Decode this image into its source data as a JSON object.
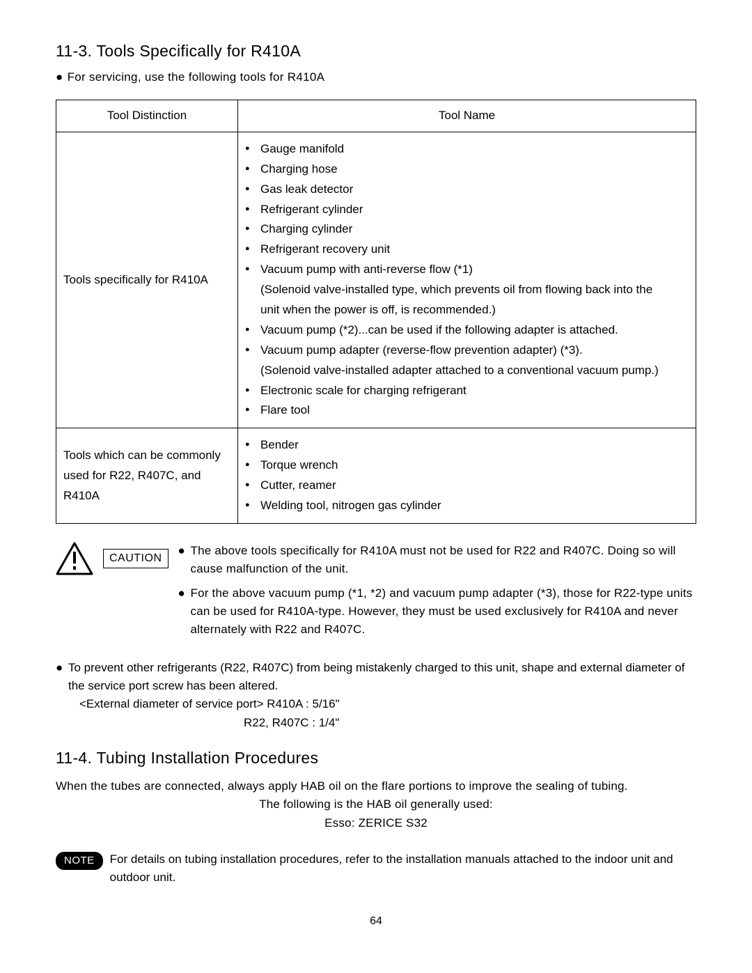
{
  "section1": {
    "title": "11-3.  Tools Specifically for R410A",
    "intro": "For servicing, use the following tools for R410A",
    "table": {
      "col1_header": "Tool Distinction",
      "col2_header": "Tool Name",
      "row1_label": "Tools specifically for R410A",
      "row1_items": [
        {
          "b": true,
          "text": "Gauge manifold"
        },
        {
          "b": true,
          "text": "Charging hose"
        },
        {
          "b": true,
          "text": "Gas leak detector"
        },
        {
          "b": true,
          "text": "Refrigerant cylinder"
        },
        {
          "b": true,
          "text": "Charging cylinder"
        },
        {
          "b": true,
          "text": "Refrigerant recovery unit"
        },
        {
          "b": true,
          "text": "Vacuum pump with anti-reverse flow (*1)"
        },
        {
          "b": false,
          "text": "(Solenoid valve-installed type, which prevents oil from flowing back into the"
        },
        {
          "b": false,
          "text": "unit when the power is off, is recommended.)"
        },
        {
          "b": true,
          "text": "Vacuum pump (*2)...can be used if the following adapter is attached."
        },
        {
          "b": true,
          "text": "Vacuum pump adapter (reverse-flow prevention adapter) (*3)."
        },
        {
          "b": false,
          "text": "(Solenoid valve-installed adapter attached to a conventional vacuum pump.)"
        },
        {
          "b": true,
          "text": "Electronic scale for charging refrigerant"
        },
        {
          "b": true,
          "text": "Flare tool"
        }
      ],
      "row2_label": "Tools which can be commonly used for R22, R407C, and R410A",
      "row2_items": [
        {
          "b": true,
          "text": "Bender"
        },
        {
          "b": true,
          "text": "Torque wrench"
        },
        {
          "b": true,
          "text": "Cutter, reamer"
        },
        {
          "b": true,
          "text": "Welding tool, nitrogen gas cylinder"
        }
      ]
    },
    "caution": {
      "label": "CAUTION",
      "p1": "The above tools specifically for R410A must not be used for R22 and R407C. Doing so will cause malfunction of the unit.",
      "p2": "For the above vacuum pump (*1, *2) and vacuum pump adapter (*3), those for R22-type units can be used for R410A-type. However, they must be used exclusively for R410A and never alternately with R22 and R407C."
    },
    "below": {
      "p1": "To prevent other refrigerants (R22, R407C) from being mistakenly charged to this unit, shape and external diameter of the service port screw has been altered.",
      "line2": "<External diameter of service port>   R410A : 5/16\"",
      "line3": "R22, R407C : 1/4\""
    }
  },
  "section2": {
    "title": "11-4.  Tubing Installation Procedures",
    "p1": "When the tubes are connected, always apply HAB oil on the flare portions to improve the sealing of tubing.",
    "p2": "The following is the HAB oil generally used:",
    "p3": "Esso:  ZERICE S32",
    "note_label": "NOTE",
    "note_text": "For details on tubing installation procedures, refer to the installation manuals attached to the indoor unit and outdoor unit."
  },
  "page_number": "64"
}
